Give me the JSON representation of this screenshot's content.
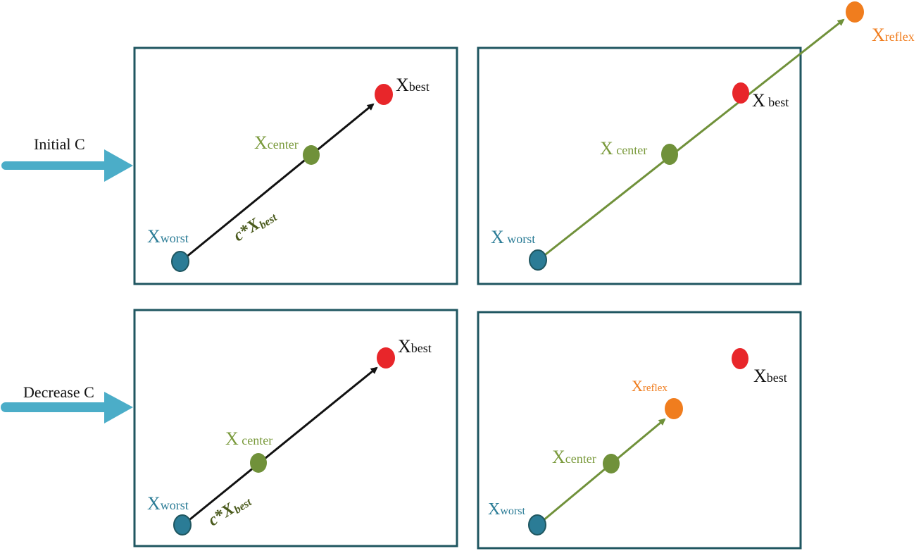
{
  "colors": {
    "frame": "#1f5660",
    "side_arrow": "#4badc8",
    "worst": "#2b7c96",
    "center": "#70913a",
    "center_label": "#7a9a3c",
    "best": "#e8262a",
    "reflex": "#f07d1e",
    "black_arrow": "#111111",
    "italic_label": "#4a5a1c"
  },
  "side_labels": {
    "top": "Initial C",
    "bottom": "Decrease C"
  },
  "panel_tl": {
    "best": {
      "main": "X",
      "sub": "best"
    },
    "center": {
      "main": "X",
      "sub": "center"
    },
    "worst": {
      "main": "X",
      "sub": "worst"
    },
    "step": {
      "main": "c*X",
      "sub": "best"
    }
  },
  "panel_tr": {
    "reflex": {
      "main": "X",
      "sub": "reflex"
    },
    "best": {
      "main": "X",
      "sub": " best"
    },
    "center": {
      "main": "X",
      "sub": " center"
    },
    "worst": {
      "main": "X",
      "sub": " worst"
    }
  },
  "panel_bl": {
    "best": {
      "main": "X",
      "sub": "best"
    },
    "center": {
      "main": "X",
      "sub": " center"
    },
    "worst": {
      "main": "X",
      "sub": "worst"
    },
    "step": {
      "main": "c*X",
      "sub": "best"
    }
  },
  "panel_br": {
    "best": {
      "main": "X",
      "sub": "best"
    },
    "reflex": {
      "main": "X",
      "sub": "reflex"
    },
    "center": {
      "main": "X",
      "sub": "center"
    },
    "worst": {
      "main": "X",
      "sub": "worst"
    }
  }
}
